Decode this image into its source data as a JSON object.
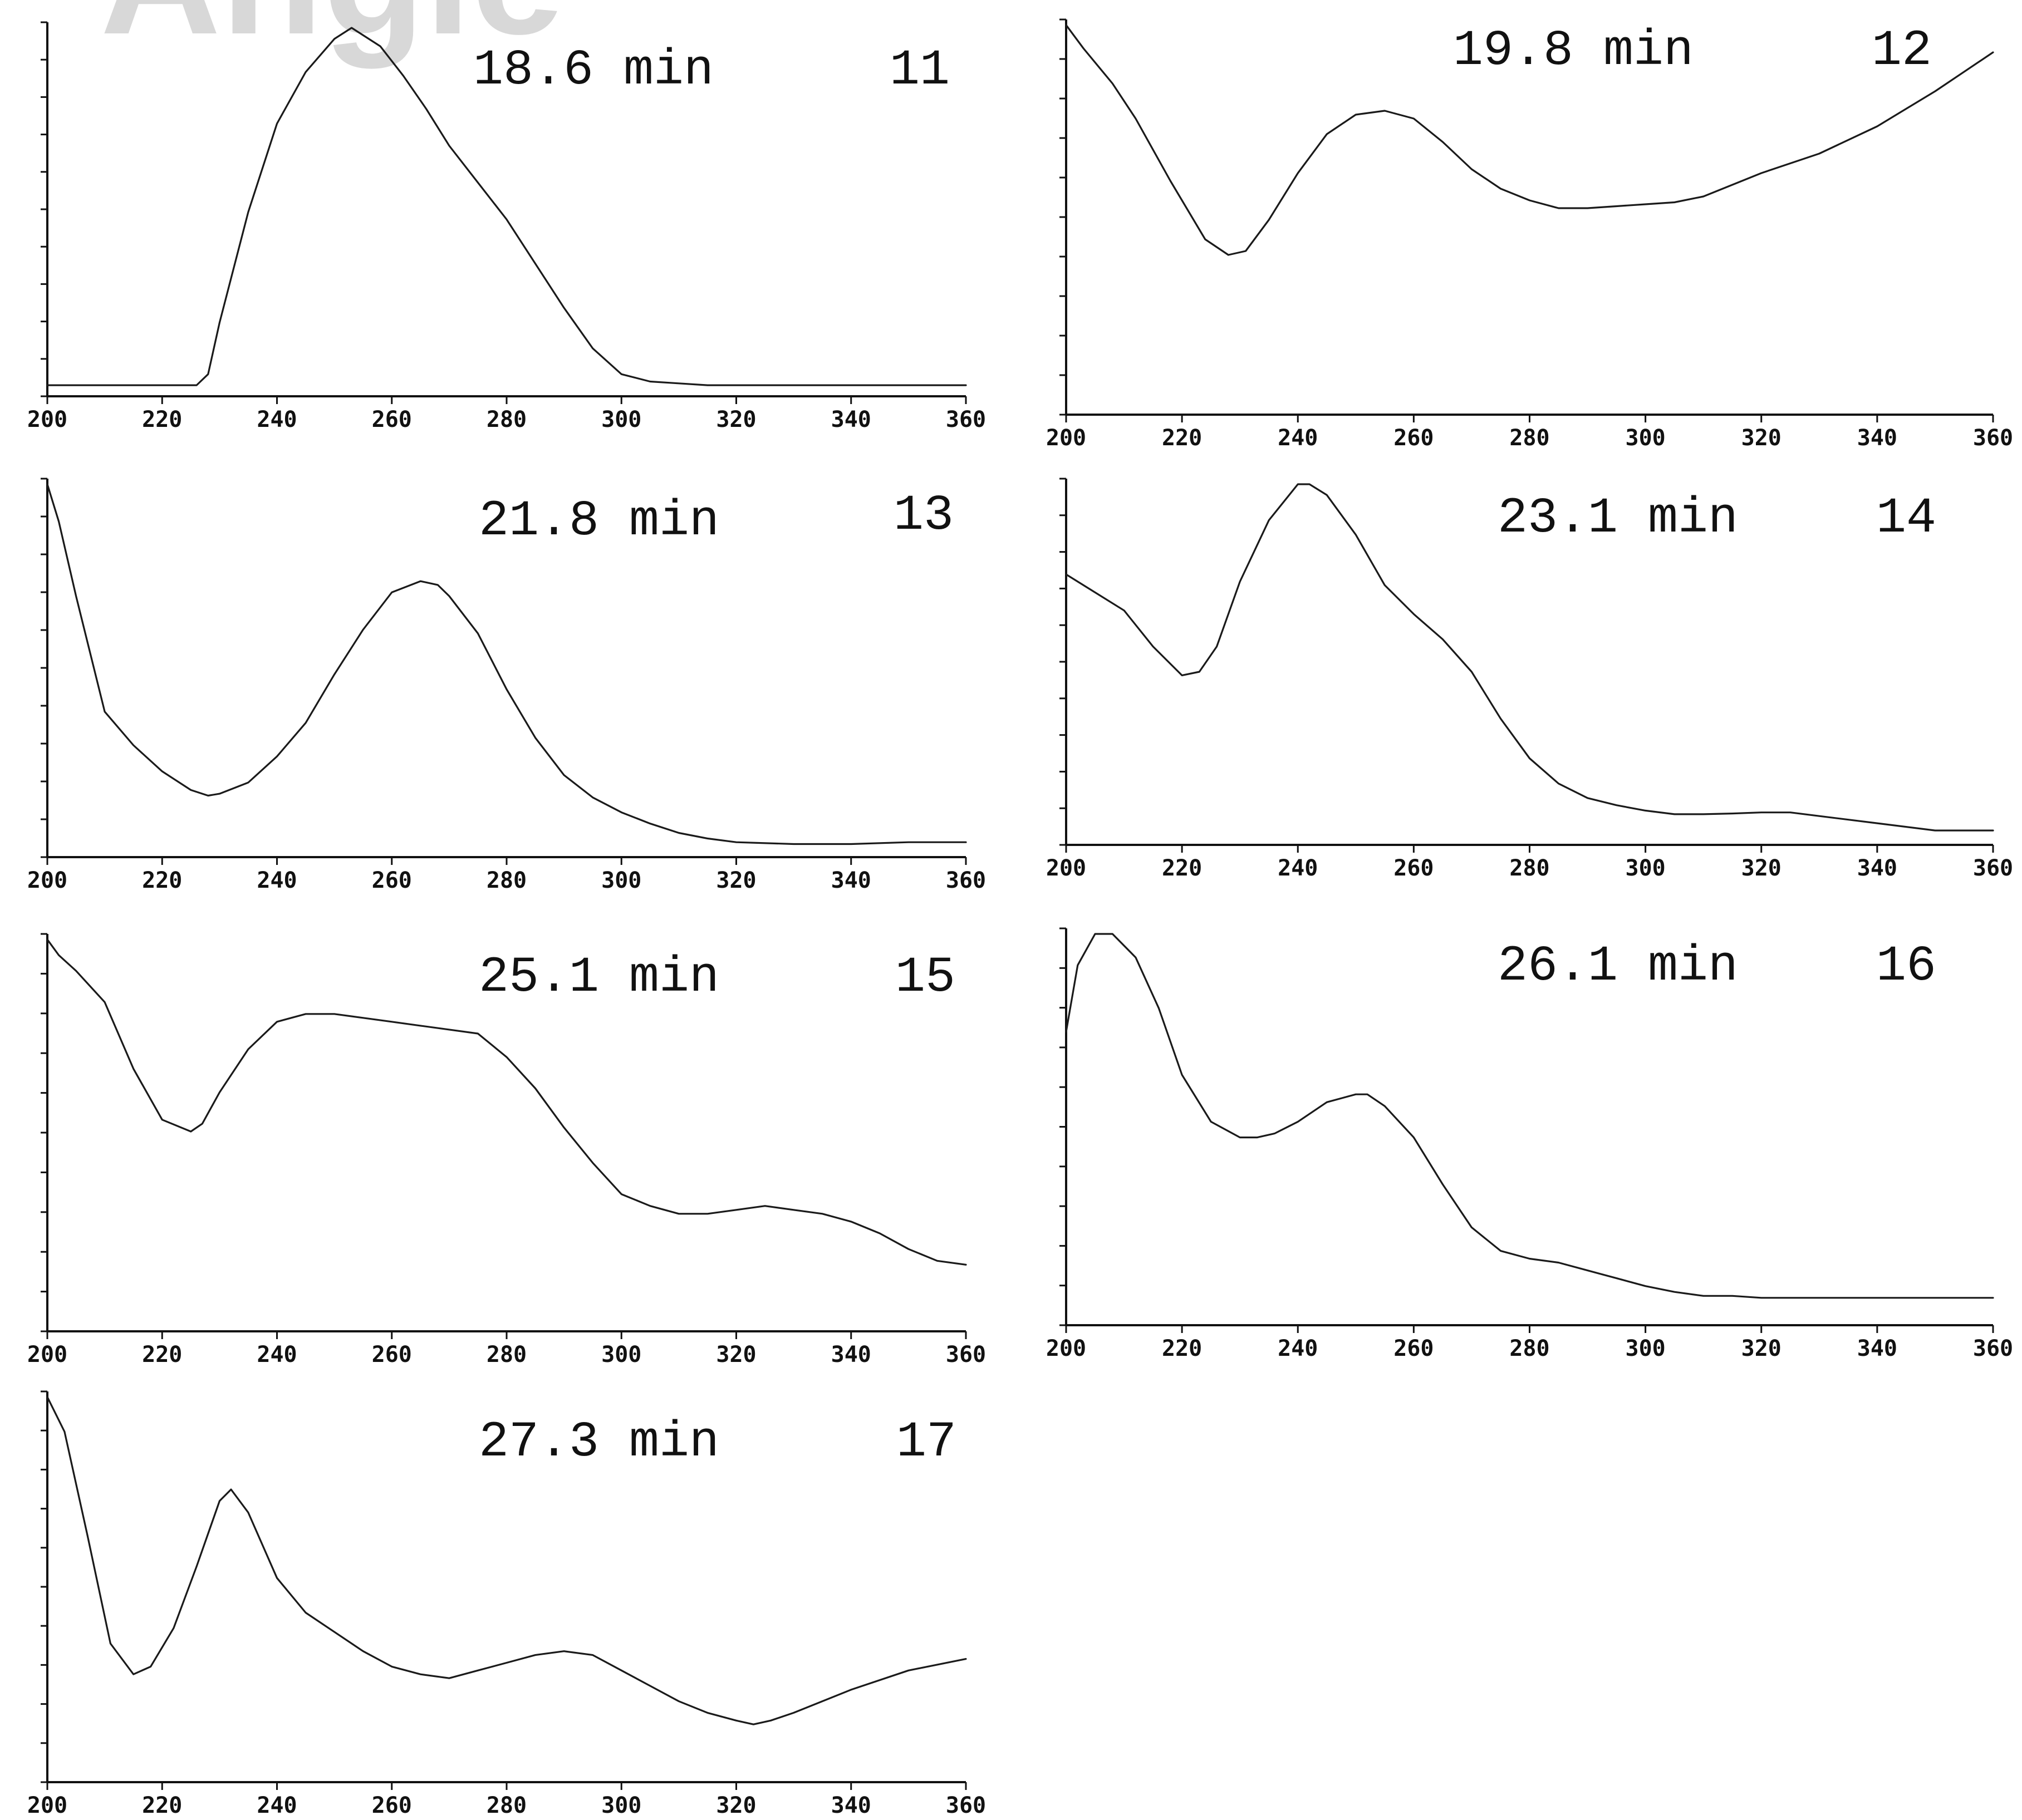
{
  "watermark": {
    "text": "Angle",
    "color": "#d8d8d8"
  },
  "chart_data": [
    {
      "type": "line",
      "retention_time": "18.6 min",
      "peak_id": "11",
      "xlim": [
        200,
        360
      ],
      "xticks": [
        "200",
        "220",
        "240",
        "260",
        "280",
        "300",
        "320",
        "340",
        "360"
      ],
      "ylim": [
        0,
        1
      ],
      "series": [
        {
          "x": [
            200,
            220,
            226,
            228,
            230,
            235,
            240,
            245,
            250,
            253,
            258,
            262,
            266,
            270,
            275,
            280,
            285,
            290,
            295,
            300,
            305,
            310,
            315,
            320,
            330,
            340,
            350,
            360
          ],
          "y": [
            0.03,
            0.03,
            0.03,
            0.06,
            0.2,
            0.5,
            0.74,
            0.88,
            0.97,
            1.0,
            0.95,
            0.87,
            0.78,
            0.68,
            0.58,
            0.48,
            0.36,
            0.24,
            0.13,
            0.06,
            0.04,
            0.035,
            0.03,
            0.03,
            0.03,
            0.03,
            0.03,
            0.03
          ]
        }
      ]
    },
    {
      "type": "line",
      "retention_time": "19.8 min",
      "peak_id": "12",
      "xlim": [
        200,
        360
      ],
      "xticks": [
        "200",
        "220",
        "240",
        "260",
        "280",
        "300",
        "320",
        "340",
        "360"
      ],
      "ylim": [
        0,
        1
      ],
      "series": [
        {
          "x": [
            200,
            203,
            208,
            212,
            218,
            224,
            228,
            231,
            235,
            240,
            245,
            250,
            255,
            260,
            265,
            270,
            275,
            280,
            285,
            290,
            295,
            300,
            305,
            310,
            320,
            330,
            340,
            350,
            360
          ],
          "y": [
            1.0,
            0.94,
            0.85,
            0.76,
            0.6,
            0.45,
            0.41,
            0.42,
            0.5,
            0.62,
            0.72,
            0.77,
            0.78,
            0.76,
            0.7,
            0.63,
            0.58,
            0.55,
            0.53,
            0.53,
            0.535,
            0.54,
            0.545,
            0.56,
            0.62,
            0.67,
            0.74,
            0.83,
            0.93
          ]
        }
      ]
    },
    {
      "type": "line",
      "retention_time": "21.8 min",
      "peak_id": "13",
      "xlim": [
        200,
        360
      ],
      "xticks": [
        "200",
        "220",
        "240",
        "260",
        "280",
        "300",
        "320",
        "340",
        "360"
      ],
      "ylim": [
        0,
        1
      ],
      "series": [
        {
          "x": [
            200,
            202,
            205,
            210,
            215,
            220,
            225,
            228,
            230,
            235,
            240,
            245,
            250,
            255,
            260,
            265,
            268,
            270,
            275,
            280,
            285,
            290,
            295,
            300,
            305,
            310,
            315,
            320,
            330,
            340,
            350,
            360
          ],
          "y": [
            1.0,
            0.9,
            0.7,
            0.39,
            0.3,
            0.23,
            0.18,
            0.165,
            0.17,
            0.2,
            0.27,
            0.36,
            0.49,
            0.61,
            0.71,
            0.74,
            0.73,
            0.7,
            0.6,
            0.45,
            0.32,
            0.22,
            0.16,
            0.12,
            0.09,
            0.065,
            0.05,
            0.04,
            0.035,
            0.035,
            0.04,
            0.04
          ]
        }
      ]
    },
    {
      "type": "line",
      "retention_time": "23.1 min",
      "peak_id": "14",
      "xlim": [
        200,
        360
      ],
      "xticks": [
        "200",
        "220",
        "240",
        "260",
        "280",
        "300",
        "320",
        "340",
        "360"
      ],
      "ylim": [
        0,
        1
      ],
      "series": [
        {
          "x": [
            200,
            205,
            210,
            215,
            220,
            223,
            226,
            230,
            235,
            240,
            242,
            245,
            250,
            255,
            260,
            265,
            270,
            275,
            280,
            285,
            290,
            295,
            300,
            305,
            310,
            315,
            320,
            325,
            330,
            340,
            350,
            360
          ],
          "y": [
            0.75,
            0.7,
            0.65,
            0.55,
            0.47,
            0.48,
            0.55,
            0.73,
            0.9,
            1.0,
            1.0,
            0.97,
            0.86,
            0.72,
            0.64,
            0.57,
            0.48,
            0.35,
            0.24,
            0.17,
            0.13,
            0.11,
            0.095,
            0.085,
            0.085,
            0.087,
            0.09,
            0.09,
            0.08,
            0.06,
            0.04,
            0.04
          ]
        }
      ]
    },
    {
      "type": "line",
      "retention_time": "25.1 min",
      "peak_id": "15",
      "xlim": [
        200,
        360
      ],
      "xticks": [
        "200",
        "220",
        "240",
        "260",
        "280",
        "300",
        "320",
        "340",
        "360"
      ],
      "ylim": [
        0,
        1
      ],
      "series": [
        {
          "x": [
            200,
            202,
            205,
            210,
            215,
            220,
            225,
            227,
            230,
            235,
            240,
            245,
            250,
            255,
            260,
            265,
            270,
            275,
            280,
            285,
            290,
            295,
            300,
            305,
            310,
            315,
            320,
            325,
            330,
            335,
            340,
            345,
            350,
            355,
            360
          ],
          "y": [
            1.0,
            0.96,
            0.92,
            0.84,
            0.67,
            0.54,
            0.51,
            0.53,
            0.61,
            0.72,
            0.79,
            0.81,
            0.81,
            0.8,
            0.79,
            0.78,
            0.77,
            0.76,
            0.7,
            0.62,
            0.52,
            0.43,
            0.35,
            0.32,
            0.3,
            0.3,
            0.31,
            0.32,
            0.31,
            0.3,
            0.28,
            0.25,
            0.21,
            0.18,
            0.17
          ]
        }
      ]
    },
    {
      "type": "line",
      "retention_time": "26.1 min",
      "peak_id": "16",
      "xlim": [
        200,
        360
      ],
      "xticks": [
        "200",
        "220",
        "240",
        "260",
        "280",
        "300",
        "320",
        "340",
        "360"
      ],
      "ylim": [
        0,
        1
      ],
      "series": [
        {
          "x": [
            200,
            202,
            205,
            208,
            212,
            216,
            220,
            225,
            230,
            233,
            236,
            240,
            245,
            250,
            252,
            255,
            260,
            265,
            270,
            275,
            280,
            285,
            290,
            295,
            300,
            305,
            310,
            315,
            320,
            330,
            340,
            350,
            360
          ],
          "y": [
            0.75,
            0.92,
            1.0,
            1.0,
            0.94,
            0.81,
            0.64,
            0.52,
            0.48,
            0.48,
            0.49,
            0.52,
            0.57,
            0.59,
            0.59,
            0.56,
            0.48,
            0.36,
            0.25,
            0.19,
            0.17,
            0.16,
            0.14,
            0.12,
            0.1,
            0.085,
            0.075,
            0.075,
            0.07,
            0.07,
            0.07,
            0.07,
            0.07
          ]
        }
      ]
    },
    {
      "type": "line",
      "retention_time": "27.3 min",
      "peak_id": "17",
      "xlim": [
        200,
        360
      ],
      "xticks": [
        "200",
        "220",
        "240",
        "260",
        "280",
        "300",
        "320",
        "340",
        "360"
      ],
      "ylim": [
        0,
        1
      ],
      "series": [
        {
          "x": [
            200,
            203,
            207,
            211,
            215,
            218,
            222,
            226,
            230,
            232,
            235,
            240,
            245,
            250,
            255,
            260,
            265,
            270,
            275,
            280,
            285,
            290,
            295,
            300,
            305,
            310,
            315,
            320,
            323,
            326,
            330,
            340,
            350,
            360
          ],
          "y": [
            1.0,
            0.91,
            0.64,
            0.36,
            0.28,
            0.3,
            0.4,
            0.56,
            0.73,
            0.76,
            0.7,
            0.53,
            0.44,
            0.39,
            0.34,
            0.3,
            0.28,
            0.27,
            0.29,
            0.31,
            0.33,
            0.34,
            0.33,
            0.29,
            0.25,
            0.21,
            0.18,
            0.16,
            0.15,
            0.16,
            0.18,
            0.24,
            0.29,
            0.32
          ]
        }
      ]
    }
  ]
}
